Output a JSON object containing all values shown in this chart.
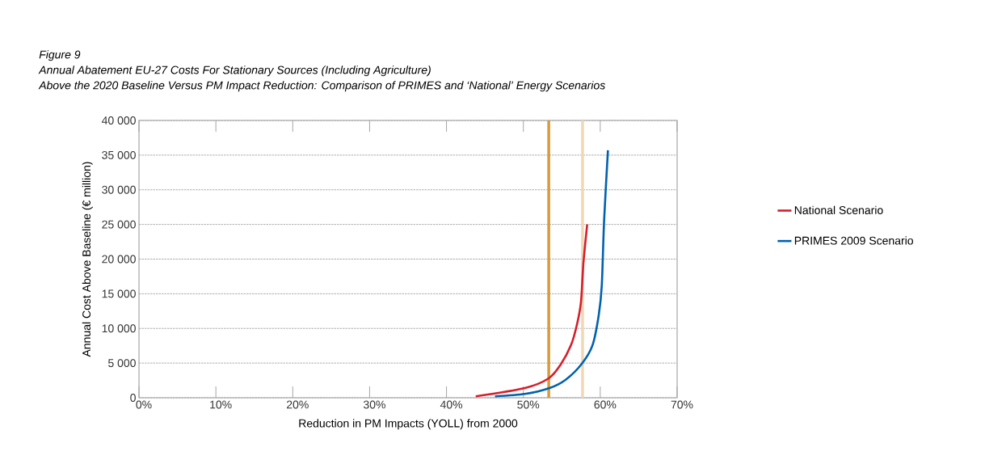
{
  "chart_data": {
    "type": "line",
    "title": "Annual Abatement EU-27 Costs For Stationary Sources (Including Agriculture)",
    "subtitle": "Above the 2020 Baseline Versus PM Impact Reduction: Comparison of PRIMES and ‘National’ Energy Scenarios",
    "annotations": [
      "Figure 9"
    ],
    "xlabel": "Reduction in PM Impacts (YOLL) from 2000",
    "ylabel": "Annual Cost Above Baseline (€ million)",
    "xlim": [
      0,
      70
    ],
    "ylim": [
      0,
      40000
    ],
    "xticks": [
      {
        "value": 0,
        "label": "0%"
      },
      {
        "value": 10,
        "label": "10%"
      },
      {
        "value": 20,
        "label": "20%"
      },
      {
        "value": 30,
        "label": "30%"
      },
      {
        "value": 40,
        "label": "40%"
      },
      {
        "value": 50,
        "label": "50%"
      },
      {
        "value": 60,
        "label": "60%"
      },
      {
        "value": 70,
        "label": "70%"
      }
    ],
    "yticks": [
      0,
      {
        "value": 5000,
        "label": "5 000"
      },
      {
        "value": 10000,
        "label": "10 000"
      },
      {
        "value": 15000,
        "label": "15 000"
      },
      {
        "value": 20000,
        "label": "20 000"
      },
      {
        "value": 25000,
        "label": "25 000"
      },
      {
        "value": 30000,
        "label": "30 000"
      },
      {
        "value": 35000,
        "label": "35 000"
      },
      {
        "value": 40000,
        "label": "40 000"
      }
    ],
    "grid": "y",
    "legend": "right",
    "marker": "none",
    "line_style": "solid",
    "series": [
      {
        "name": "National Scenario",
        "color": "#d51f2b",
        "x": [
          43.8,
          50.2,
          53.3,
          54.8,
          56.2,
          57.0,
          57.5,
          57.8,
          58.3
        ],
        "values": [
          200,
          1400,
          2800,
          4700,
          7600,
          10700,
          13900,
          19300,
          25000
        ]
      },
      {
        "name": "PRIMES 2009 Scenario",
        "color": "#0062ae",
        "x": [
          46.3,
          50.2,
          53.4,
          55.5,
          57.6,
          59.0,
          59.8,
          60.2,
          60.5,
          61.0
        ],
        "values": [
          200,
          550,
          1400,
          2600,
          4900,
          7600,
          11900,
          16200,
          25500,
          35700
        ]
      }
    ],
    "ref_lines": [
      {
        "axis": "x",
        "value": 53.3,
        "color": "#d89a3a"
      },
      {
        "axis": "x",
        "value": 57.7,
        "color": "#f0d8b4"
      }
    ]
  }
}
